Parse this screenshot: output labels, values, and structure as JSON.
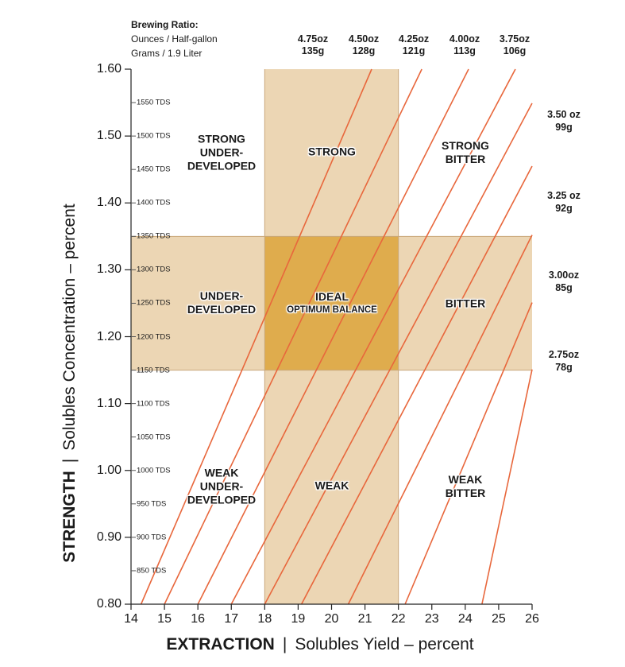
{
  "header": {
    "title": "Brewing Ratio:",
    "ounces_label": "Ounces / Half-gallon",
    "grams_label": "Grams / 1.9 Liter"
  },
  "ratio_top": [
    {
      "oz": "4.75oz",
      "g": "135g"
    },
    {
      "oz": "4.50oz",
      "g": "128g"
    },
    {
      "oz": "4.25oz",
      "g": "121g"
    },
    {
      "oz": "4.00oz",
      "g": "113g"
    },
    {
      "oz": "3.75oz",
      "g": "106g"
    }
  ],
  "ratio_right": [
    {
      "oz": "3.50 oz",
      "g": "99g"
    },
    {
      "oz": "3.25 oz",
      "g": "92g"
    },
    {
      "oz": "3.00oz",
      "g": "85g"
    },
    {
      "oz": "2.75oz",
      "g": "78g"
    }
  ],
  "regions": {
    "strong_underdeveloped": [
      "STRONG",
      "UNDER-",
      "DEVELOPED"
    ],
    "strong": "STRONG",
    "strong_bitter": [
      "STRONG",
      "BITTER"
    ],
    "underdeveloped": [
      "UNDER-",
      "DEVELOPED"
    ],
    "ideal": "IDEAL",
    "optimum": "OPTIMUM BALANCE",
    "bitter": "BITTER",
    "weak_underdeveloped": [
      "WEAK",
      "UNDER-",
      "DEVELOPED"
    ],
    "weak": "WEAK",
    "weak_bitter": [
      "WEAK",
      "BITTER"
    ]
  },
  "axes": {
    "y_title_bold": "STRENGTH",
    "y_title_rest": "Solubles Concentration – percent",
    "x_title_bold": "EXTRACTION",
    "x_title_rest": "Solubles Yield – percent",
    "separator": "|"
  },
  "colors": {
    "band": "#ecd6b4",
    "ideal": "#dfac4d",
    "line": "#e8673c",
    "grid": "#ffffff"
  },
  "chart_data": {
    "type": "line",
    "xlim": [
      14,
      26
    ],
    "ylim": [
      0.8,
      1.6
    ],
    "x_ticks": [
      "14",
      "15",
      "16",
      "17",
      "18",
      "19",
      "20",
      "21",
      "22",
      "23",
      "24",
      "25",
      "26"
    ],
    "y_ticks": [
      "0.80",
      "0.90",
      "1.00",
      "1.10",
      "1.20",
      "1.30",
      "1.40",
      "1.50",
      "1.60"
    ],
    "tds_labels": [
      {
        "y": 1.55,
        "label": "1550 TDS"
      },
      {
        "y": 1.5,
        "label": "1500 TDS"
      },
      {
        "y": 1.45,
        "label": "1450 TDS"
      },
      {
        "y": 1.4,
        "label": "1400 TDS"
      },
      {
        "y": 1.35,
        "label": "1350 TDS"
      },
      {
        "y": 1.3,
        "label": "1300 TDS"
      },
      {
        "y": 1.25,
        "label": "1250 TDS"
      },
      {
        "y": 1.2,
        "label": "1200 TDS"
      },
      {
        "y": 1.15,
        "label": "1150 TDS"
      },
      {
        "y": 1.1,
        "label": "1100 TDS"
      },
      {
        "y": 1.05,
        "label": "1050 TDS"
      },
      {
        "y": 1.0,
        "label": "1000 TDS"
      },
      {
        "y": 0.95,
        "label": "950 TDS"
      },
      {
        "y": 0.9,
        "label": "900 TDS"
      },
      {
        "y": 0.85,
        "label": "850 TDS"
      }
    ],
    "ideal_extraction": [
      18,
      22
    ],
    "ideal_strength": [
      1.15,
      1.35
    ],
    "series": [
      {
        "name": "4.75oz 135g",
        "slope": 0.085,
        "x": [
          14.3,
          21.2
        ],
        "y": [
          0.8,
          1.6
        ]
      },
      {
        "name": "4.50oz 128g",
        "slope": 0.0805,
        "x": [
          15.0,
          22.7
        ],
        "y": [
          0.8,
          1.6
        ]
      },
      {
        "name": "4.25oz 121g",
        "slope": 0.0762,
        "x": [
          16.0,
          24.1
        ],
        "y": [
          0.8,
          1.6
        ]
      },
      {
        "name": "4.00oz 113g",
        "slope": 0.0715,
        "x": [
          17.0,
          25.5
        ],
        "y": [
          0.8,
          1.6
        ]
      },
      {
        "name": "3.75oz 106g",
        "slope": 0.0672,
        "x": [
          18.0,
          26.0
        ],
        "y": [
          0.8,
          1.549
        ]
      },
      {
        "name": "3.50oz 99g",
        "slope": 0.0627,
        "x": [
          19.1,
          26.0
        ],
        "y": [
          0.8,
          1.455
        ]
      },
      {
        "name": "3.25oz 92g",
        "slope": 0.0583,
        "x": [
          20.5,
          26.0
        ],
        "y": [
          0.8,
          1.352
        ]
      },
      {
        "name": "3.00oz 85g",
        "slope": 0.0538,
        "x": [
          22.2,
          26.0
        ],
        "y": [
          0.8,
          1.251
        ]
      },
      {
        "name": "2.75oz 78g",
        "slope": 0.0494,
        "x": [
          24.5,
          26.0
        ],
        "y": [
          0.8,
          1.151
        ]
      }
    ]
  }
}
